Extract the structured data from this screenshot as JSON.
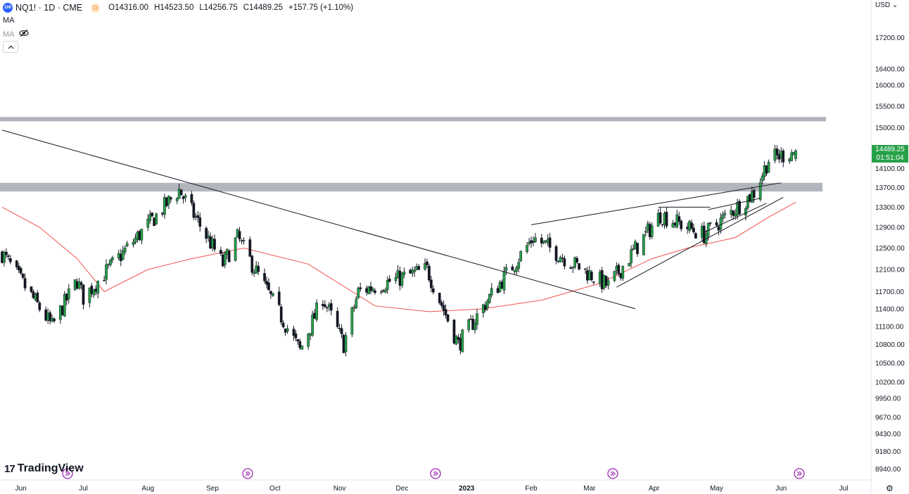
{
  "header": {
    "symbol_badge": "100",
    "title": "NQ1! · 1D · CME",
    "delayed_badge": "D",
    "open": "O14316.00",
    "high": "H14523.50",
    "low": "L14256.75",
    "close": "C14489.25",
    "change": "+157.75 (+1.10%)"
  },
  "indicators": {
    "ma1": "MA",
    "ma2": "MA"
  },
  "currency_label": "USD",
  "price_tag": {
    "price": "14489.25",
    "countdown": "01:51:04",
    "color": "#26a148"
  },
  "branding": {
    "name": "TradingView"
  },
  "colors": {
    "up": "#26a148",
    "down": "#131722",
    "ma": "#f05350",
    "zone": "#b2b5be",
    "trendline": "#131722"
  },
  "chart_data": {
    "type": "candlestick",
    "y_scale": "log",
    "ylim": [
      8800,
      18000
    ],
    "y_ticks": [
      "17200.00",
      "16400.00",
      "16000.00",
      "15500.00",
      "15000.00",
      "14100.00",
      "13700.00",
      "13300.00",
      "12900.00",
      "12500.00",
      "12100.00",
      "11700.00",
      "11400.00",
      "11100.00",
      "10800.00",
      "10500.00",
      "10200.00",
      "9950.00",
      "9670.00",
      "9430.00",
      "9180.00",
      "8940.00"
    ],
    "x_ticks": [
      "Jun",
      "Jul",
      "Aug",
      "Sep",
      "Oct",
      "Nov",
      "Dec",
      "2023",
      "Feb",
      "Mar",
      "Apr",
      "May",
      "Jun",
      "Jul"
    ],
    "date_range": [
      "2022-05-23",
      "2023-06-08"
    ],
    "ohlc_waypoints": [
      {
        "date": "2022-05-23",
        "close": 12400
      },
      {
        "date": "2022-06-16",
        "close": 11100
      },
      {
        "date": "2022-06-28",
        "close": 11900
      },
      {
        "date": "2022-07-01",
        "close": 11600
      },
      {
        "date": "2022-08-16",
        "close": 13650
      },
      {
        "date": "2022-09-06",
        "close": 12200
      },
      {
        "date": "2022-09-13",
        "close": 12700
      },
      {
        "date": "2022-10-13",
        "close": 10700
      },
      {
        "date": "2022-10-24",
        "close": 11600
      },
      {
        "date": "2022-11-03",
        "close": 10800
      },
      {
        "date": "2022-11-10",
        "close": 11700
      },
      {
        "date": "2022-12-13",
        "close": 12100
      },
      {
        "date": "2022-12-28",
        "close": 10800
      },
      {
        "date": "2023-01-12",
        "close": 11600
      },
      {
        "date": "2023-02-02",
        "close": 12700
      },
      {
        "date": "2023-03-10",
        "close": 11800
      },
      {
        "date": "2023-04-04",
        "close": 13150
      },
      {
        "date": "2023-04-25",
        "close": 12750
      },
      {
        "date": "2023-05-19",
        "close": 13600
      },
      {
        "date": "2023-05-26",
        "close": 14300
      },
      {
        "date": "2023-06-08",
        "close": 14489.25
      }
    ],
    "last_candle": {
      "open": 14316.0,
      "high": 14523.5,
      "low": 14256.75,
      "close": 14489.25
    },
    "moving_average": [
      {
        "date": "2022-05-23",
        "value": 13300
      },
      {
        "date": "2022-06-10",
        "value": 12900
      },
      {
        "date": "2022-06-28",
        "value": 12300
      },
      {
        "date": "2022-07-11",
        "value": 11700
      },
      {
        "date": "2022-08-01",
        "value": 12100
      },
      {
        "date": "2022-08-22",
        "value": 12300
      },
      {
        "date": "2022-09-16",
        "value": 12500
      },
      {
        "date": "2022-10-17",
        "value": 12200
      },
      {
        "date": "2022-11-18",
        "value": 11450
      },
      {
        "date": "2022-12-14",
        "value": 11350
      },
      {
        "date": "2023-01-09",
        "value": 11400
      },
      {
        "date": "2023-02-06",
        "value": 11550
      },
      {
        "date": "2023-03-06",
        "value": 11850
      },
      {
        "date": "2023-03-31",
        "value": 12300
      },
      {
        "date": "2023-04-17",
        "value": 12500
      },
      {
        "date": "2023-05-10",
        "value": 12700
      },
      {
        "date": "2023-05-26",
        "value": 13100
      },
      {
        "date": "2023-06-08",
        "value": 13400
      }
    ],
    "zones": [
      {
        "from": 15150,
        "to": 15250
      },
      {
        "from": 13620,
        "to": 13800
      }
    ],
    "trendlines": [
      {
        "from": {
          "date": "2022-05-23",
          "price": 14950
        },
        "to": {
          "date": "2023-03-23",
          "price": 11400
        }
      },
      {
        "from": {
          "date": "2023-02-01",
          "price": 12950
        },
        "to": {
          "date": "2023-06-01",
          "price": 13800
        }
      },
      {
        "from": {
          "date": "2023-03-14",
          "price": 11780
        },
        "to": {
          "date": "2023-06-02",
          "price": 13500
        }
      },
      {
        "from": {
          "date": "2023-04-03",
          "price": 13300
        },
        "to": {
          "date": "2023-04-28",
          "price": 13300
        }
      },
      {
        "from": {
          "date": "2023-04-25",
          "price": 12800
        },
        "to": {
          "date": "2023-05-25",
          "price": 13380
        }
      },
      {
        "from": {
          "date": "2023-04-27",
          "price": 13250
        },
        "to": {
          "date": "2023-05-22",
          "price": 13480
        }
      }
    ]
  }
}
